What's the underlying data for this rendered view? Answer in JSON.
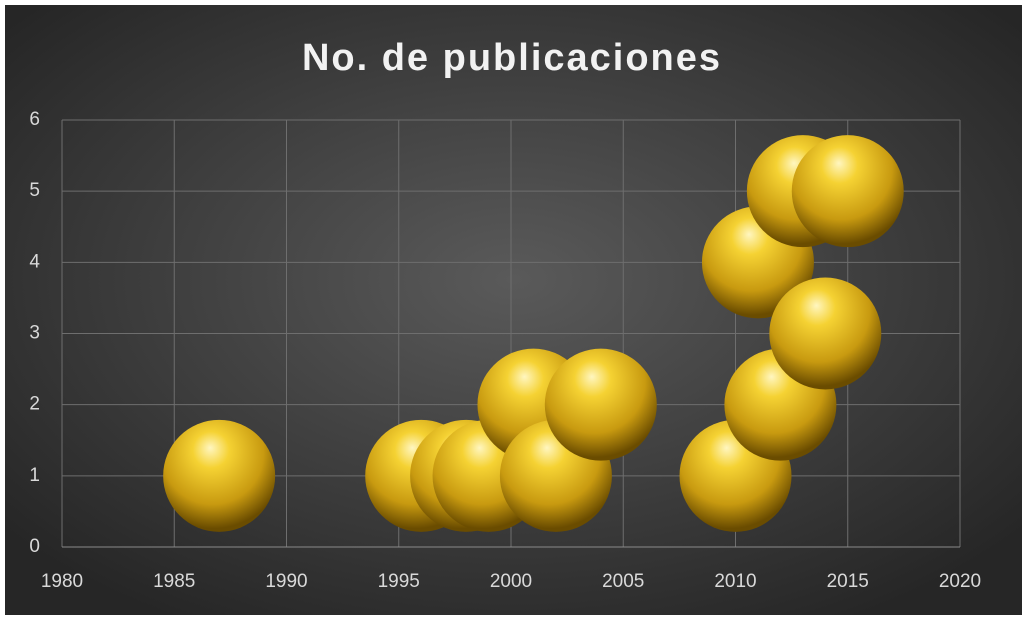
{
  "chart_data": {
    "type": "scatter",
    "title": "No. de publicaciones",
    "x": [
      1987,
      1996,
      1998,
      1999,
      2001,
      2002,
      2004,
      2010,
      2011,
      2012,
      2013,
      2014,
      2015
    ],
    "values": [
      1,
      1,
      1,
      1,
      2,
      1,
      2,
      1,
      4,
      2,
      5,
      3,
      5
    ],
    "color": "#e8c020",
    "xlim": [
      1980,
      2020
    ],
    "xticks": [
      1980,
      1985,
      1990,
      1995,
      2000,
      2005,
      2010,
      2015,
      2020
    ],
    "ylim": [
      0,
      6
    ],
    "yticks": [
      0,
      1,
      2,
      3,
      4,
      5,
      6
    ],
    "grid": true
  }
}
